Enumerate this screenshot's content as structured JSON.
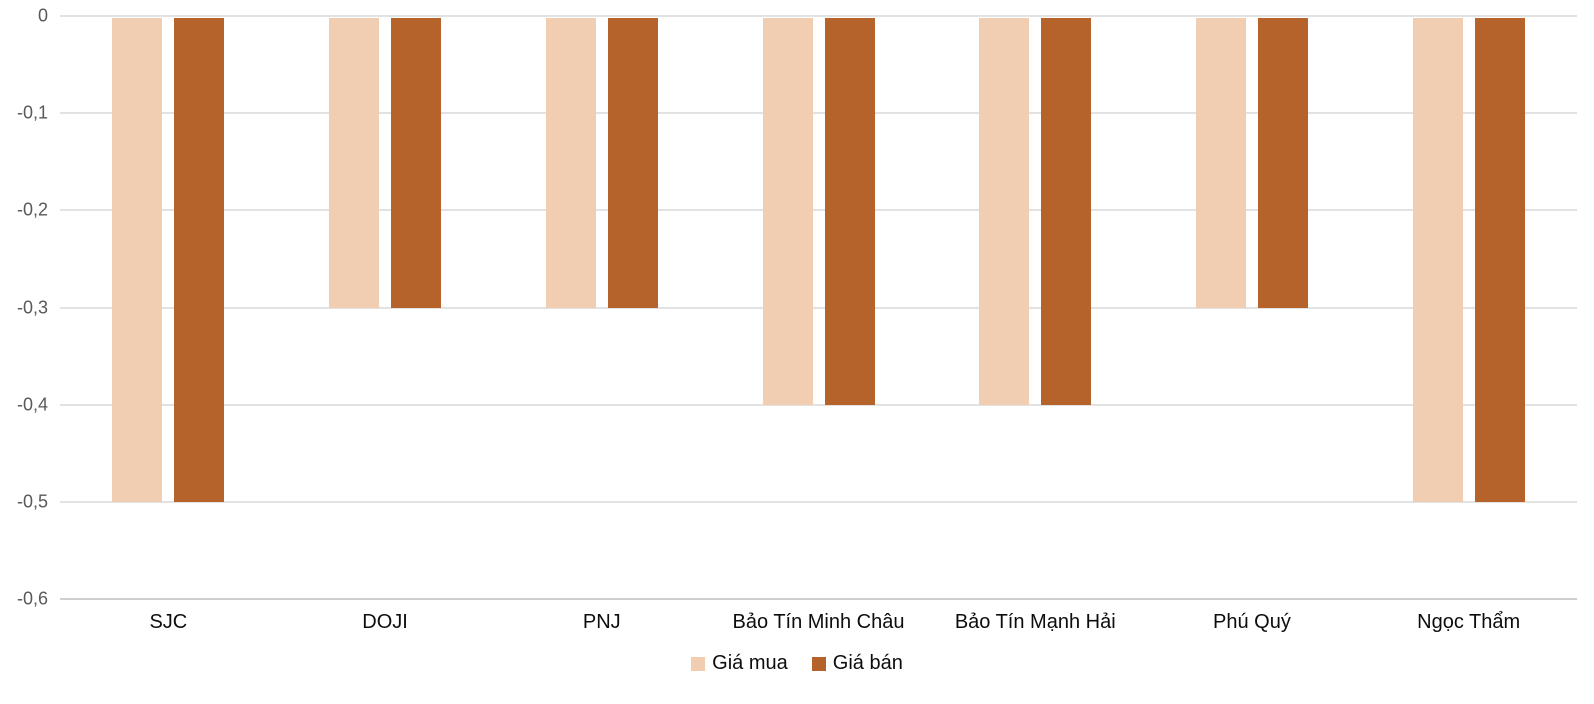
{
  "chart_data": {
    "type": "bar",
    "title": "",
    "xlabel": "",
    "ylabel": "",
    "categories": [
      "SJC",
      "DOJI",
      "PNJ",
      "Bảo Tín Minh Châu",
      "Bảo Tín Mạnh Hải",
      "Phú Quý",
      "Ngọc Thẩm"
    ],
    "series": [
      {
        "name": "Giá mua",
        "color": "#f1ceb1",
        "values": [
          -0.5,
          -0.3,
          -0.3,
          -0.4,
          -0.4,
          -0.3,
          -0.5
        ]
      },
      {
        "name": "Giá bán",
        "color": "#b5622b",
        "values": [
          -0.5,
          -0.3,
          -0.3,
          -0.4,
          -0.4,
          -0.3,
          -0.5
        ]
      }
    ],
    "ylim": [
      -0.6,
      0
    ],
    "yticks": [
      0,
      -0.1,
      -0.2,
      -0.3,
      -0.4,
      -0.5,
      -0.6
    ],
    "ytick_labels": [
      "0",
      "-0,1",
      "-0,2",
      "-0,3",
      "-0,4",
      "-0,5",
      "-0,6"
    ],
    "grid": true,
    "legend_position": "bottom",
    "colors": {
      "background": "#ffffff",
      "gridline": "#e2e2e2",
      "bottom_gridline": "#cfcfcf",
      "axis_tick_text": "#595959",
      "category_text": "#0d0d0d",
      "legend_text": "#0d0d0d"
    }
  }
}
